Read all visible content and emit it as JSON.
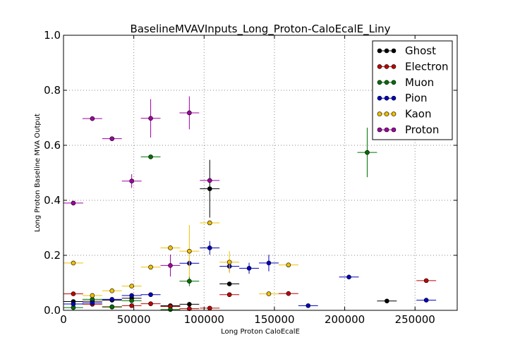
{
  "chart_data": {
    "type": "scatter",
    "title": "BaselineMVAVInputs_Long_Proton-CaloEcalE_Liny",
    "xlabel": "Long Proton CaloEcalE",
    "ylabel": "Long Proton Baseline MVA Output",
    "xlim": [
      0,
      280000
    ],
    "ylim": [
      0.0,
      1.0
    ],
    "x_ticks": [
      0,
      50000,
      100000,
      150000,
      200000,
      250000
    ],
    "x_tick_labels": [
      "0",
      "50000",
      "100000",
      "150000",
      "200000",
      "250000"
    ],
    "y_ticks": [
      0.0,
      0.2,
      0.4,
      0.6,
      0.8,
      1.0
    ],
    "y_tick_labels": [
      "0.0",
      "0.2",
      "0.4",
      "0.6",
      "0.8",
      "1.0"
    ],
    "grid": true,
    "legend_position": "top-right",
    "series": [
      {
        "name": "Ghost",
        "color": "#000000",
        "points": [
          {
            "x": 7000,
            "y": 0.032,
            "xerr": 7000,
            "yerr": 0.004
          },
          {
            "x": 20500,
            "y": 0.033,
            "xerr": 7000,
            "yerr": 0.004
          },
          {
            "x": 34500,
            "y": 0.037,
            "xerr": 7000,
            "yerr": 0.005
          },
          {
            "x": 48500,
            "y": 0.044,
            "xerr": 7000,
            "yerr": 0.006
          },
          {
            "x": 76000,
            "y": 0.017,
            "xerr": 7000,
            "yerr": 0.004
          },
          {
            "x": 89500,
            "y": 0.022,
            "xerr": 7000,
            "yerr": 0.004
          },
          {
            "x": 104000,
            "y": 0.442,
            "xerr": 7000,
            "yerr": 0.105
          },
          {
            "x": 118000,
            "y": 0.096,
            "xerr": 7000,
            "yerr": 0.006
          },
          {
            "x": 230000,
            "y": 0.034,
            "xerr": 7000,
            "yerr": 0.004
          }
        ]
      },
      {
        "name": "Electron",
        "color": "#c00000",
        "points": [
          {
            "x": 7000,
            "y": 0.06,
            "xerr": 7000,
            "yerr": 0.004
          },
          {
            "x": 20500,
            "y": 0.022,
            "xerr": 7000,
            "yerr": 0.004
          },
          {
            "x": 34500,
            "y": 0.012,
            "xerr": 7000,
            "yerr": 0.004
          },
          {
            "x": 48500,
            "y": 0.017,
            "xerr": 7000,
            "yerr": 0.004
          },
          {
            "x": 62000,
            "y": 0.024,
            "xerr": 7000,
            "yerr": 0.004
          },
          {
            "x": 76000,
            "y": 0.014,
            "xerr": 7000,
            "yerr": 0.004
          },
          {
            "x": 89500,
            "y": 0.006,
            "xerr": 7000,
            "yerr": 0.004
          },
          {
            "x": 104000,
            "y": 0.008,
            "xerr": 7000,
            "yerr": 0.004
          },
          {
            "x": 118000,
            "y": 0.057,
            "xerr": 7000,
            "yerr": 0.006
          },
          {
            "x": 160000,
            "y": 0.061,
            "xerr": 7000,
            "yerr": 0.004
          },
          {
            "x": 258000,
            "y": 0.108,
            "xerr": 7000,
            "yerr": 0.006
          }
        ]
      },
      {
        "name": "Muon",
        "color": "#007000",
        "points": [
          {
            "x": 7000,
            "y": 0.01,
            "xerr": 7000,
            "yerr": 0.004
          },
          {
            "x": 20500,
            "y": 0.04,
            "xerr": 7000,
            "yerr": 0.005
          },
          {
            "x": 34500,
            "y": 0.013,
            "xerr": 7000,
            "yerr": 0.004
          },
          {
            "x": 48500,
            "y": 0.035,
            "xerr": 7000,
            "yerr": 0.005
          },
          {
            "x": 62000,
            "y": 0.558,
            "xerr": 7000,
            "yerr": 0.006
          },
          {
            "x": 76000,
            "y": 0.003,
            "xerr": 7000,
            "yerr": 0.003
          },
          {
            "x": 89500,
            "y": 0.106,
            "xerr": 7000,
            "yerr": 0.018
          },
          {
            "x": 216000,
            "y": 0.574,
            "xerr": 7000,
            "yerr": 0.09
          }
        ]
      },
      {
        "name": "Pion",
        "color": "#0000c0",
        "points": [
          {
            "x": 7000,
            "y": 0.023,
            "xerr": 7000,
            "yerr": 0.004
          },
          {
            "x": 20500,
            "y": 0.027,
            "xerr": 7000,
            "yerr": 0.004
          },
          {
            "x": 34500,
            "y": 0.04,
            "xerr": 7000,
            "yerr": 0.004
          },
          {
            "x": 48500,
            "y": 0.054,
            "xerr": 7000,
            "yerr": 0.004
          },
          {
            "x": 62000,
            "y": 0.057,
            "xerr": 7000,
            "yerr": 0.004
          },
          {
            "x": 89500,
            "y": 0.171,
            "xerr": 7000,
            "yerr": 0.012
          },
          {
            "x": 104000,
            "y": 0.227,
            "xerr": 7000,
            "yerr": 0.025
          },
          {
            "x": 118000,
            "y": 0.16,
            "xerr": 7000,
            "yerr": 0.02
          },
          {
            "x": 132000,
            "y": 0.153,
            "xerr": 7000,
            "yerr": 0.02
          },
          {
            "x": 146000,
            "y": 0.172,
            "xerr": 7000,
            "yerr": 0.03
          },
          {
            "x": 174000,
            "y": 0.017,
            "xerr": 7000,
            "yerr": 0.004
          },
          {
            "x": 203000,
            "y": 0.121,
            "xerr": 7000,
            "yerr": 0.004
          },
          {
            "x": 258000,
            "y": 0.037,
            "xerr": 7000,
            "yerr": 0.004
          }
        ]
      },
      {
        "name": "Kaon",
        "color": "#f0c000",
        "points": [
          {
            "x": 7000,
            "y": 0.172,
            "xerr": 7000,
            "yerr": 0.004
          },
          {
            "x": 20500,
            "y": 0.054,
            "xerr": 7000,
            "yerr": 0.004
          },
          {
            "x": 34500,
            "y": 0.071,
            "xerr": 7000,
            "yerr": 0.004
          },
          {
            "x": 48500,
            "y": 0.088,
            "xerr": 7000,
            "yerr": 0.004
          },
          {
            "x": 62000,
            "y": 0.157,
            "xerr": 7000,
            "yerr": 0.004
          },
          {
            "x": 76000,
            "y": 0.227,
            "xerr": 7000,
            "yerr": 0.008
          },
          {
            "x": 89500,
            "y": 0.215,
            "xerr": 7000,
            "yerr": 0.095
          },
          {
            "x": 104000,
            "y": 0.318,
            "xerr": 7000,
            "yerr": 0.004
          },
          {
            "x": 118000,
            "y": 0.175,
            "xerr": 7000,
            "yerr": 0.04
          },
          {
            "x": 146000,
            "y": 0.06,
            "xerr": 7000,
            "yerr": 0.004
          },
          {
            "x": 160000,
            "y": 0.165,
            "xerr": 7000,
            "yerr": 0.004
          }
        ]
      },
      {
        "name": "Proton",
        "color": "#a000a0",
        "points": [
          {
            "x": 7000,
            "y": 0.39,
            "xerr": 7000,
            "yerr": 0.004
          },
          {
            "x": 20500,
            "y": 0.697,
            "xerr": 7000,
            "yerr": 0.004
          },
          {
            "x": 34500,
            "y": 0.624,
            "xerr": 7000,
            "yerr": 0.004
          },
          {
            "x": 48500,
            "y": 0.47,
            "xerr": 7000,
            "yerr": 0.025
          },
          {
            "x": 62000,
            "y": 0.698,
            "xerr": 7000,
            "yerr": 0.07
          },
          {
            "x": 76000,
            "y": 0.163,
            "xerr": 7000,
            "yerr": 0.04
          },
          {
            "x": 89500,
            "y": 0.718,
            "xerr": 7000,
            "yerr": 0.06
          },
          {
            "x": 104000,
            "y": 0.472,
            "xerr": 7000,
            "yerr": 0.004
          }
        ]
      }
    ]
  }
}
